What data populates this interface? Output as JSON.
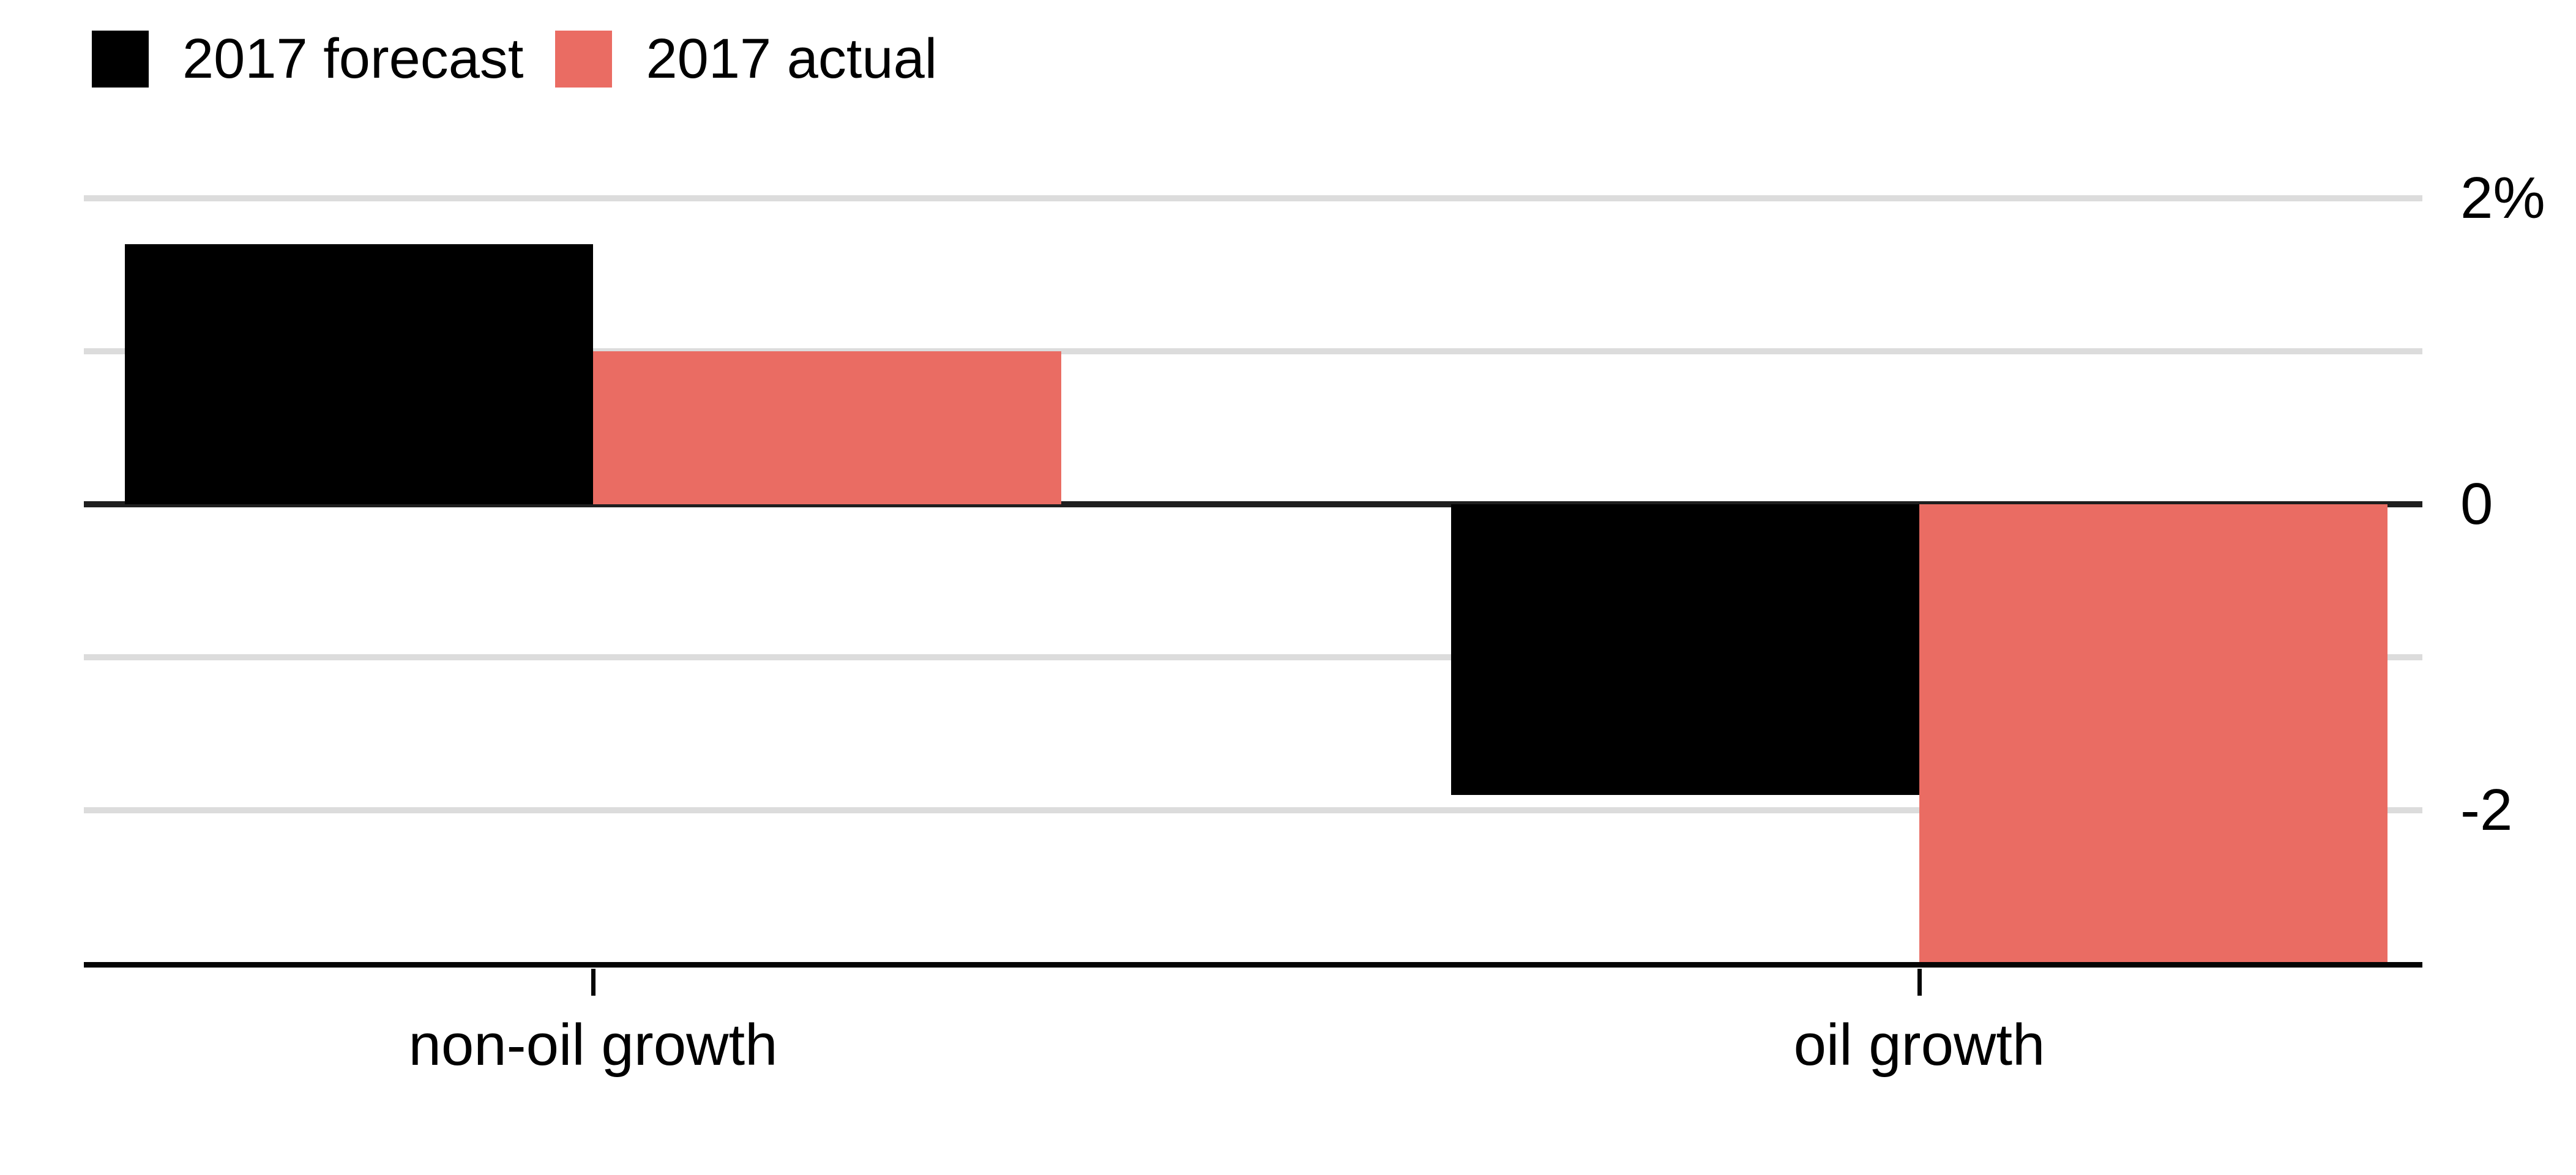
{
  "chart_data": {
    "type": "bar",
    "title": "",
    "categories": [
      "non-oil growth",
      "oil growth"
    ],
    "series": [
      {
        "name": "2017 forecast",
        "color": "#000000",
        "values": [
          1.7,
          -1.9
        ]
      },
      {
        "name": "2017 actual",
        "color": "#ea6c63",
        "values": [
          1.0,
          -3.0
        ]
      }
    ],
    "unit": "%",
    "ylim": [
      -3,
      2
    ],
    "yticks": [
      {
        "value": 2,
        "label": "2%"
      },
      {
        "value": 0,
        "label": "0"
      },
      {
        "value": -2,
        "label": "-2"
      }
    ],
    "gridline_values": [
      2,
      1,
      -1,
      -2
    ],
    "grid": "horizontal",
    "legend_position": "top-left",
    "value_axis_side": "right",
    "colors": {
      "gridline": "#dcdcdc",
      "zero_line": "#1f1f1f",
      "axis_line": "#050505",
      "text": "#000000",
      "background": "#ffffff"
    }
  }
}
